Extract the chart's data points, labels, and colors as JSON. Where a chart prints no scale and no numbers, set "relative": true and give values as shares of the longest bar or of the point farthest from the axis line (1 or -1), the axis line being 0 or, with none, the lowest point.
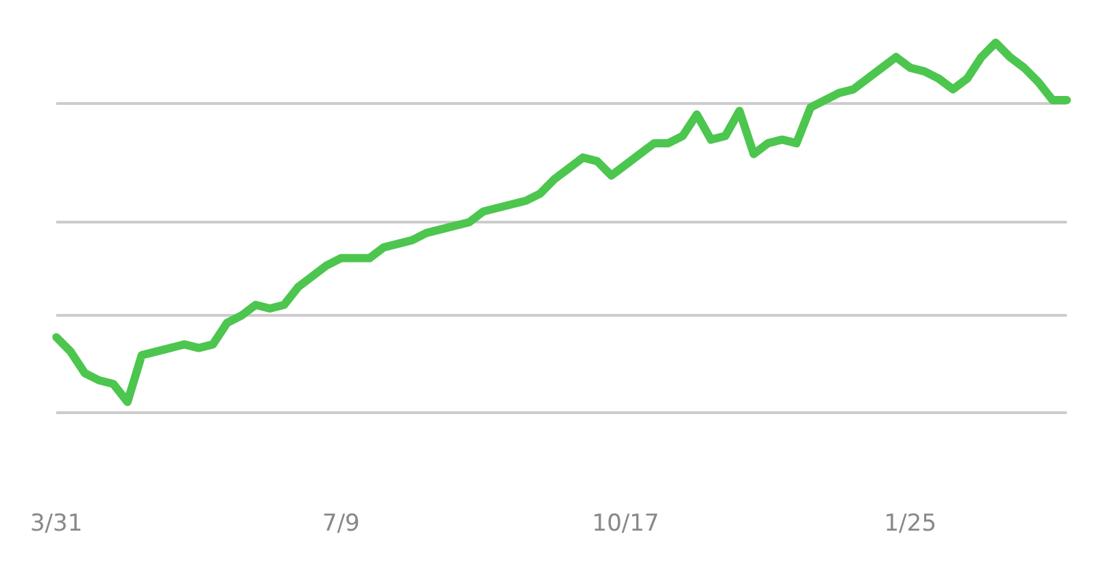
{
  "chart_data": {
    "type": "line",
    "relative": true,
    "grid": "y",
    "line_style": "solid",
    "categories": [
      "3/31",
      null,
      null,
      null,
      null,
      null,
      null,
      null,
      null,
      null,
      null,
      null,
      null,
      null,
      null,
      null,
      null,
      null,
      null,
      null,
      "7/9",
      null,
      null,
      null,
      null,
      null,
      null,
      null,
      null,
      null,
      null,
      null,
      null,
      null,
      null,
      null,
      null,
      null,
      null,
      null,
      "10/17",
      null,
      null,
      null,
      null,
      null,
      null,
      null,
      null,
      null,
      null,
      null,
      null,
      null,
      null,
      null,
      null,
      null,
      null,
      null,
      "1/25",
      null,
      null,
      null,
      null,
      null,
      null,
      null,
      null,
      null,
      null,
      null
    ],
    "series": [
      {
        "color": "#4cc64e",
        "values": [
          0.18,
          0.14,
          0.08,
          0.06,
          0.05,
          0,
          0.13,
          0.14,
          0.15,
          0.16,
          0.15,
          0.16,
          0.22,
          0.24,
          0.27,
          0.26,
          0.27,
          0.32,
          0.35,
          0.38,
          0.4,
          0.4,
          0.4,
          0.43,
          0.44,
          0.45,
          0.47,
          0.48,
          0.49,
          0.5,
          0.53,
          0.54,
          0.55,
          0.56,
          0.58,
          0.62,
          0.65,
          0.68,
          0.67,
          0.63,
          0.66,
          0.69,
          0.72,
          0.72,
          0.74,
          0.8,
          0.73,
          0.74,
          0.81,
          0.69,
          0.72,
          0.73,
          0.72,
          0.82,
          0.84,
          0.86,
          0.87,
          0.9,
          0.93,
          0.96,
          0.93,
          0.92,
          0.9,
          0.87,
          0.9,
          0.96,
          1,
          0.96,
          0.93,
          0.89,
          0.84,
          0.84
        ]
      }
    ]
  }
}
